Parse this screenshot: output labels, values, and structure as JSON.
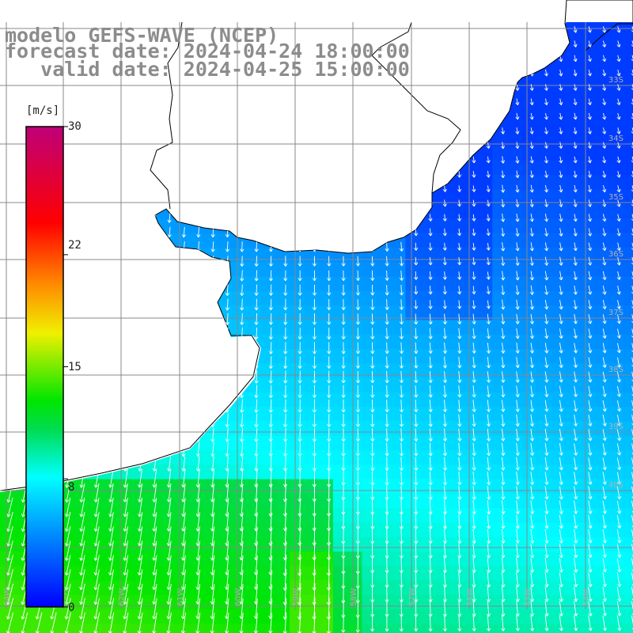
{
  "title": {
    "line1": "modelo GEFS-WAVE (NCEP)",
    "line2": "forecast date: 2024-04-24 18:00:00",
    "line3": "   valid date: 2024-04-25 15:00:00"
  },
  "colorbar": {
    "unit": "[m/s]",
    "ticks": [
      "30",
      "22",
      "15",
      "8",
      "0"
    ],
    "tick_values": [
      30,
      22,
      15,
      8,
      0
    ],
    "range": [
      0,
      30
    ],
    "colors": [
      "#0000ff",
      "#00a0ff",
      "#00ffff",
      "#00e000",
      "#ffff00",
      "#ff8000",
      "#ff0000",
      "#c00080"
    ]
  },
  "latitude_labels": [
    "33S",
    "34S",
    "35S",
    "36S",
    "37S",
    "38S",
    "39S",
    "40S"
  ],
  "longitude_labels": [
    "64W",
    "63W",
    "62W",
    "61W",
    "60W",
    "59W",
    "58W",
    "57W",
    "56W",
    "55W",
    "54W"
  ],
  "map": {
    "land_color": "#ffffff",
    "coastline_color": "#000000",
    "gridline_color": "#888888",
    "wind_field": "wind speed and direction, shaded by speed, arrows pointing roughly southward"
  }
}
